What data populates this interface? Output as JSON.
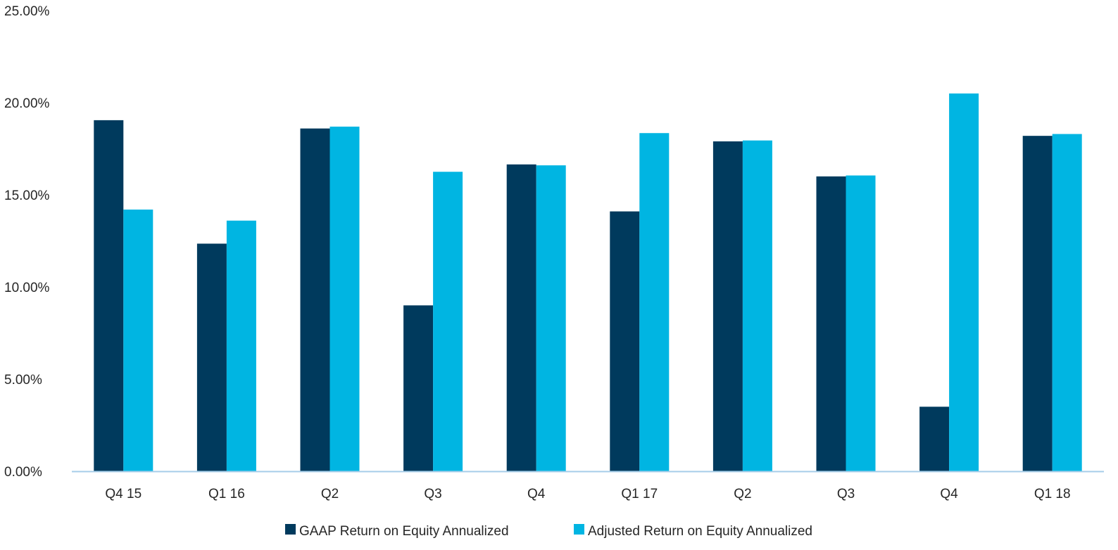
{
  "chart_data": {
    "type": "bar",
    "title": "",
    "xlabel": "",
    "ylabel": "",
    "categories": [
      "Q4 15",
      "Q1 16",
      "Q2",
      "Q3",
      "Q4",
      "Q1 17",
      "Q2",
      "Q3",
      "Q4",
      "Q1 18"
    ],
    "series": [
      {
        "name": "GAAP Return on Equity Annualized",
        "color": "#003a5d",
        "values": [
          19.05,
          12.35,
          18.6,
          9.0,
          16.65,
          14.1,
          17.9,
          16.0,
          3.5,
          18.2
        ]
      },
      {
        "name": "Adjusted Return on Equity Annualized",
        "color": "#00b5e2",
        "values": [
          14.2,
          13.6,
          18.7,
          16.25,
          16.6,
          18.35,
          17.95,
          16.05,
          20.5,
          18.3
        ]
      }
    ],
    "ylim": [
      0,
      25
    ],
    "yticks": [
      0,
      5,
      10,
      15,
      20,
      25
    ],
    "ytick_labels": [
      "0.00%",
      "5.00%",
      "10.00%",
      "15.00%",
      "20.00%",
      "25.00%"
    ],
    "grid": false,
    "legend": "bottom",
    "axis_color": "#a6cde8"
  }
}
